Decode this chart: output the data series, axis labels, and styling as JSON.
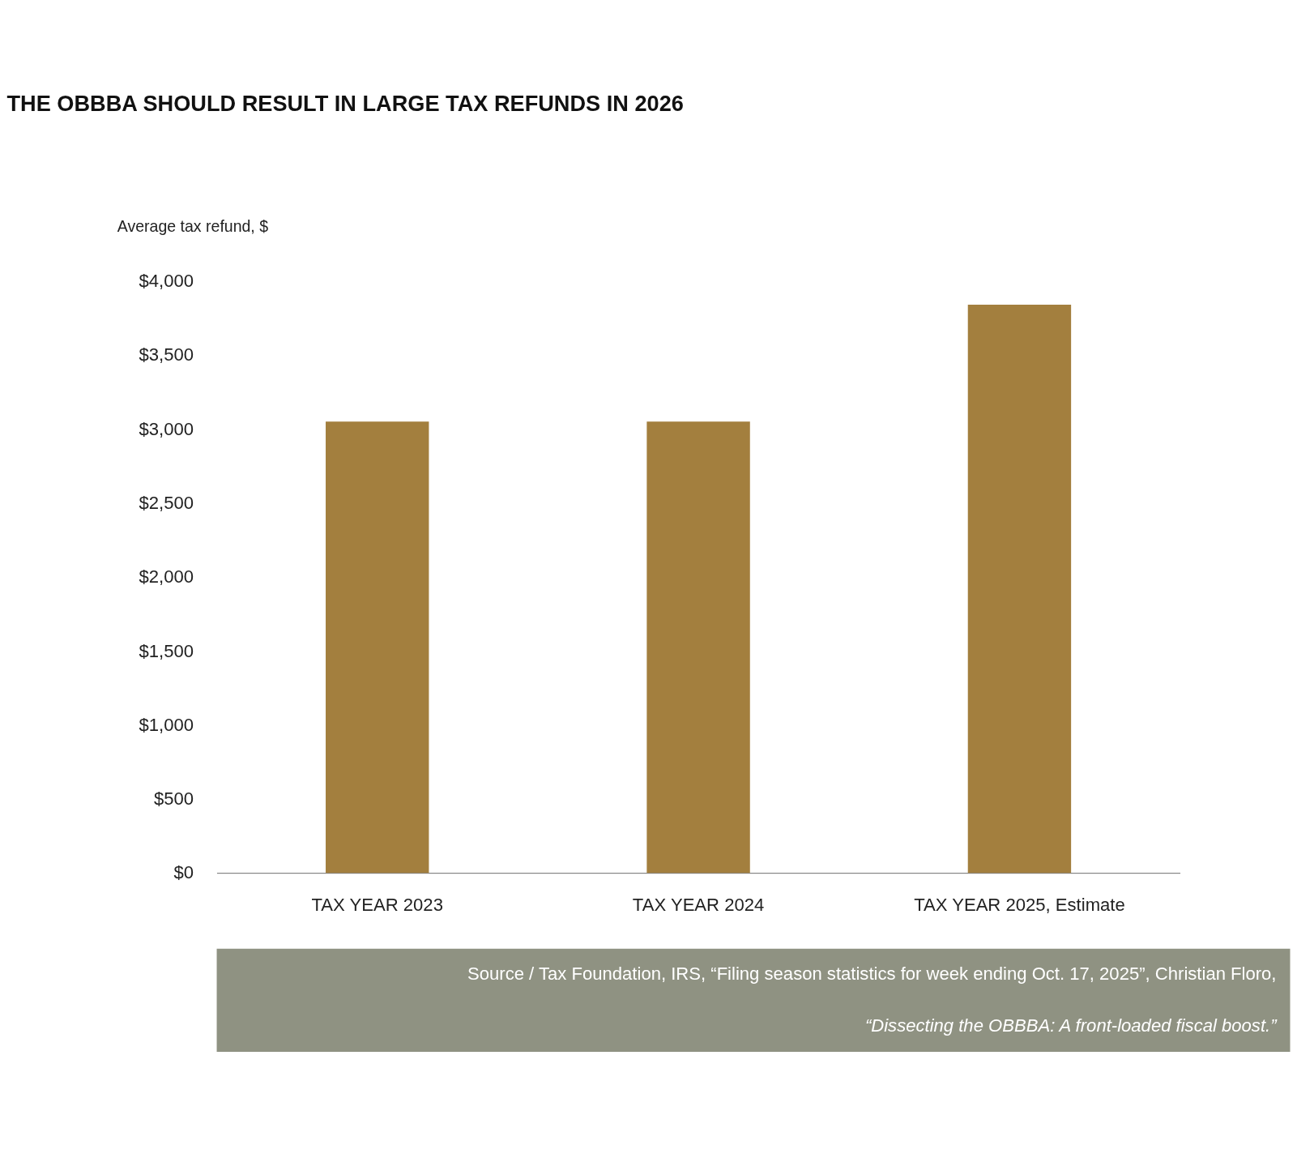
{
  "chart_data": {
    "type": "bar",
    "title": "THE OBBBA SHOULD RESULT IN LARGE TAX REFUNDS IN 2026",
    "ylabel": "Average tax refund, $",
    "categories": [
      "TAX YEAR 2023",
      "TAX YEAR 2024",
      "TAX YEAR 2025, Estimate"
    ],
    "values": [
      3050,
      3050,
      3840
    ],
    "color": "#a37f3e",
    "ylim": [
      0,
      4000
    ],
    "yticks": [
      {
        "value": 0,
        "label": "$0"
      },
      {
        "value": 500,
        "label": "$500"
      },
      {
        "value": 1000,
        "label": "$1,000"
      },
      {
        "value": 1500,
        "label": "$1,500"
      },
      {
        "value": 2000,
        "label": "$2,000"
      },
      {
        "value": 2500,
        "label": "$2,500"
      },
      {
        "value": 3000,
        "label": "$3,000"
      },
      {
        "value": 3500,
        "label": "$3,500"
      },
      {
        "value": 4000,
        "label": "$4,000"
      }
    ],
    "grid": false,
    "annotations": [
      "Source  /  Tax Foundation, IRS, “Filing season statistics for week ending Oct. 17, 2025”, Christian Floro,",
      "“Dissecting the OBBBA: A front-loaded fiscal boost.”"
    ]
  }
}
